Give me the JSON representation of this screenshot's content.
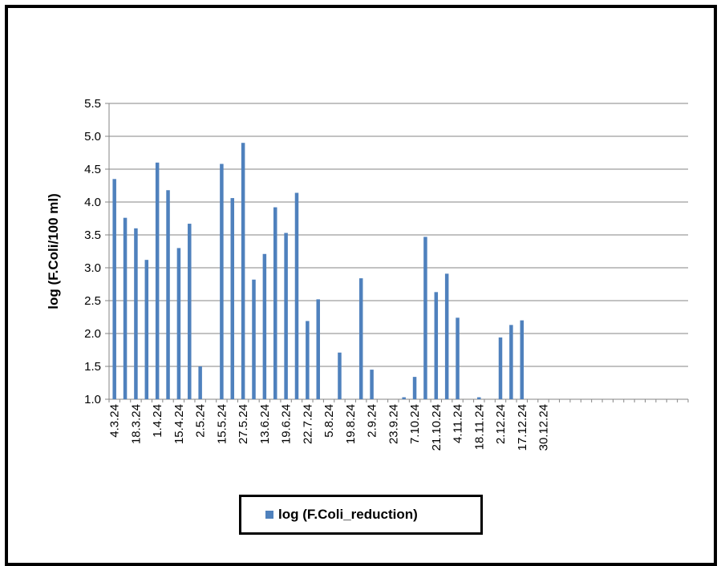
{
  "chart_data": {
    "type": "bar",
    "ylabel": "log (F.Coli/100 ml)",
    "ylim": [
      1.0,
      5.5
    ],
    "yticks": [
      "1.0",
      "1.5",
      "2.0",
      "2.5",
      "3.0",
      "3.5",
      "4.0",
      "4.5",
      "5.0",
      "5.5"
    ],
    "grid": true,
    "legend_position": "bottom",
    "color": "#4F81BD",
    "xtick_labels": [
      "4.3.24",
      "18.3.24",
      "1.4.24",
      "15.4.24",
      "2.5.24",
      "15.5.24",
      "27.5.24",
      "13.6.24",
      "19.6.24",
      "22.7.24",
      "5.8.24",
      "19.8.24",
      "2.9.24",
      "23.9.24",
      "7.10.24",
      "21.10.24",
      "4.11.24",
      "18.11.24",
      "2.12.24",
      "17.12.24",
      "30.12.24"
    ],
    "series": [
      {
        "name": "log (F.Coli_reduction)",
        "values": [
          4.35,
          3.76,
          3.6,
          3.12,
          4.6,
          4.18,
          3.3,
          3.67,
          1.5,
          null,
          4.58,
          4.06,
          4.9,
          2.82,
          3.21,
          3.92,
          3.53,
          4.14,
          2.19,
          2.52,
          null,
          1.71,
          null,
          2.84,
          1.45,
          null,
          null,
          1.03,
          1.34,
          3.47,
          2.63,
          2.91,
          2.24,
          null,
          1.03,
          null,
          1.94,
          2.13,
          2.2,
          null,
          null,
          null,
          null,
          null,
          null,
          null,
          null,
          null,
          null,
          null,
          null,
          null,
          null,
          null
        ]
      }
    ]
  }
}
